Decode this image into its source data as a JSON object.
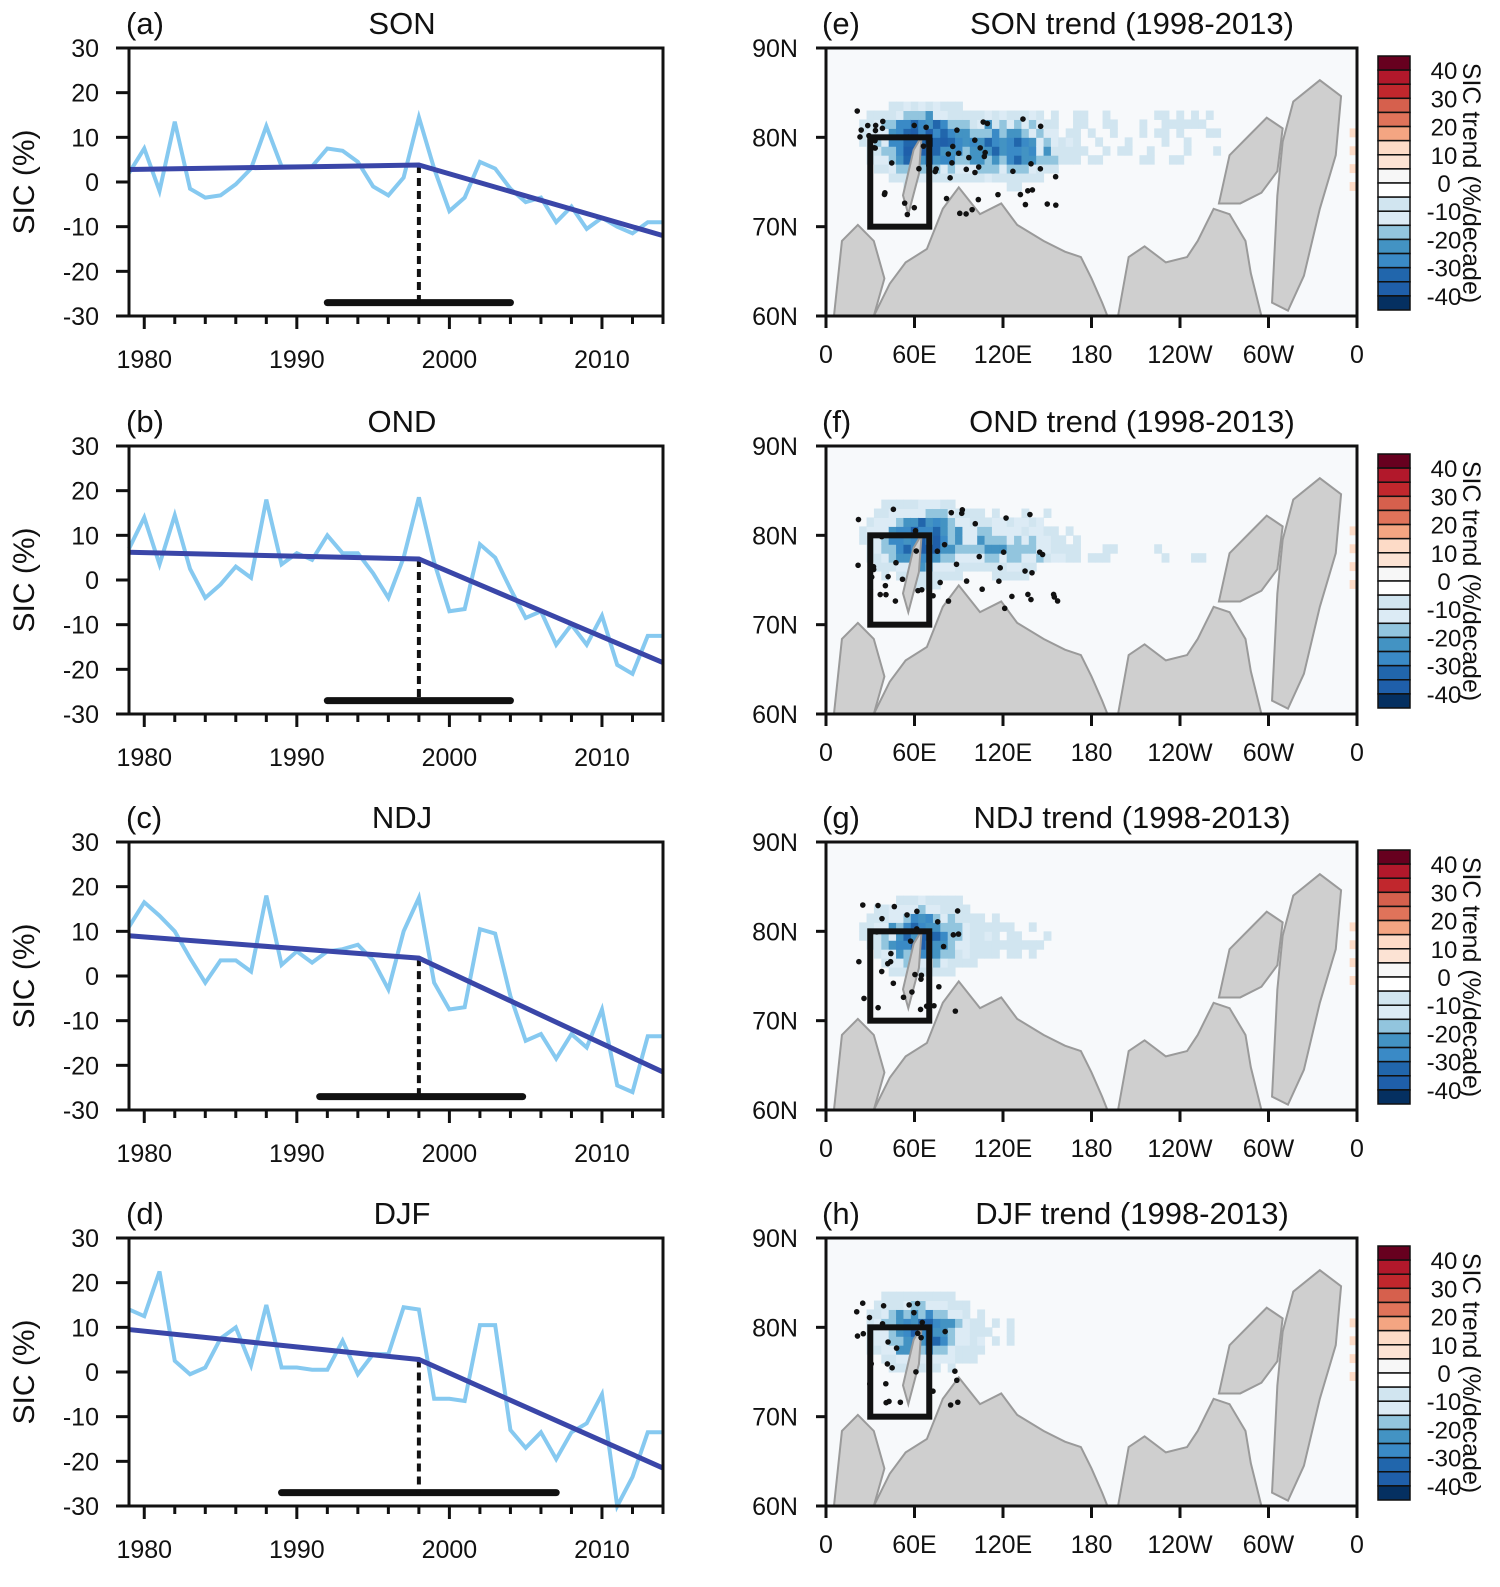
{
  "figure": {
    "ylabel": "SIC (%)",
    "colors": {
      "anomaly_line": "#86C9F0",
      "fit_line": "#3A46A8",
      "breakpoint_line": "#111111",
      "ci_bar": "#111111",
      "land": "#CFCFCF",
      "coast": "#9A9A9A",
      "ocean": "#F7F9FB",
      "box": "#111111"
    }
  },
  "chart_data": [
    {
      "id": "a",
      "type": "line",
      "panel_label": "(a)",
      "title": "SON",
      "xlabel": "",
      "ylabel": "SIC (%)",
      "xlim": [
        1979,
        2014
      ],
      "ylim": [
        -30,
        30
      ],
      "xticks": [
        1980,
        1990,
        2000,
        2010
      ],
      "yticks": [
        30,
        20,
        10,
        0,
        -10,
        -20,
        -30
      ],
      "x": [
        1979,
        1980,
        1981,
        1982,
        1983,
        1984,
        1985,
        1986,
        1987,
        1988,
        1989,
        1990,
        1991,
        1992,
        1993,
        1994,
        1995,
        1996,
        1997,
        1998,
        1999,
        2000,
        2001,
        2002,
        2003,
        2004,
        2005,
        2006,
        2007,
        2008,
        2009,
        2010,
        2011,
        2012,
        2013,
        2014
      ],
      "series": [
        {
          "name": "SIC anomaly",
          "values": [
            2,
            7.5,
            -2,
            13.5,
            -1.5,
            -3.5,
            -3,
            -0.5,
            3,
            12.5,
            3.5,
            3.5,
            3.5,
            7.5,
            7,
            4.5,
            -1,
            -3,
            1,
            14.5,
            3,
            -6.5,
            -3.5,
            4.5,
            3,
            -1.5,
            -4.5,
            -3.5,
            -9,
            -5.5,
            -10.5,
            -8,
            -10,
            -11.5,
            -9,
            -9
          ]
        },
        {
          "name": "piecewise linear fit",
          "x": [
            1979,
            1998,
            2014
          ],
          "values": [
            2.8,
            3.8,
            -12
          ]
        }
      ],
      "breakpoint": {
        "year": 1998,
        "ci": [
          1992,
          2004
        ],
        "ci_y": -27
      }
    },
    {
      "id": "b",
      "type": "line",
      "panel_label": "(b)",
      "title": "OND",
      "xlabel": "",
      "ylabel": "SIC (%)",
      "xlim": [
        1979,
        2014
      ],
      "ylim": [
        -30,
        30
      ],
      "xticks": [
        1980,
        1990,
        2000,
        2010
      ],
      "yticks": [
        30,
        20,
        10,
        0,
        -10,
        -20,
        -30
      ],
      "x": [
        1979,
        1980,
        1981,
        1982,
        1983,
        1984,
        1985,
        1986,
        1987,
        1988,
        1989,
        1990,
        1991,
        1992,
        1993,
        1994,
        1995,
        1996,
        1997,
        1998,
        1999,
        2000,
        2001,
        2002,
        2003,
        2004,
        2005,
        2006,
        2007,
        2008,
        2009,
        2010,
        2011,
        2012,
        2013,
        2014
      ],
      "series": [
        {
          "name": "SIC anomaly",
          "values": [
            7,
            14,
            3.5,
            14.5,
            2.5,
            -4,
            -1,
            3,
            0.5,
            18,
            3.5,
            6,
            4.5,
            10,
            6,
            6,
            1.5,
            -4,
            5,
            18.5,
            4,
            -7,
            -6.5,
            8,
            5,
            -2,
            -8.5,
            -7,
            -14.5,
            -10,
            -14.5,
            -8,
            -19,
            -21,
            -12.5,
            -12.5
          ]
        },
        {
          "name": "piecewise linear fit",
          "x": [
            1979,
            1998,
            2014
          ],
          "values": [
            6.2,
            4.7,
            -18.5
          ]
        }
      ],
      "breakpoint": {
        "year": 1998,
        "ci": [
          1992,
          2004
        ],
        "ci_y": -27
      }
    },
    {
      "id": "c",
      "type": "line",
      "panel_label": "(c)",
      "title": "NDJ",
      "xlabel": "",
      "ylabel": "SIC (%)",
      "xlim": [
        1979,
        2014
      ],
      "ylim": [
        -30,
        30
      ],
      "xticks": [
        1980,
        1990,
        2000,
        2010
      ],
      "yticks": [
        30,
        20,
        10,
        0,
        -10,
        -20,
        -30
      ],
      "x": [
        1979,
        1980,
        1981,
        1982,
        1983,
        1984,
        1985,
        1986,
        1987,
        1988,
        1989,
        1990,
        1991,
        1992,
        1993,
        1994,
        1995,
        1996,
        1997,
        1998,
        1999,
        2000,
        2001,
        2002,
        2003,
        2004,
        2005,
        2006,
        2007,
        2008,
        2009,
        2010,
        2011,
        2012,
        2013,
        2014
      ],
      "series": [
        {
          "name": "SIC anomaly",
          "values": [
            11,
            16.5,
            13.5,
            10,
            4,
            -1.5,
            3.5,
            3.5,
            1,
            18,
            2.5,
            5.5,
            3,
            5.5,
            6,
            7,
            3.5,
            -3,
            10,
            17.5,
            -1.5,
            -7.5,
            -7,
            10.5,
            9.5,
            -4.5,
            -14.5,
            -13,
            -18.5,
            -13,
            -16,
            -7.5,
            -24.5,
            -26,
            -13.5,
            -13.5
          ]
        },
        {
          "name": "piecewise linear fit",
          "x": [
            1979,
            1998,
            2014
          ],
          "values": [
            9,
            4,
            -21.5
          ]
        }
      ],
      "breakpoint": {
        "year": 1998,
        "ci": [
          1991.5,
          2004.8
        ],
        "ci_y": -27
      }
    },
    {
      "id": "d",
      "type": "line",
      "panel_label": "(d)",
      "title": "DJF",
      "xlabel": "",
      "ylabel": "SIC (%)",
      "xlim": [
        1979,
        2014
      ],
      "ylim": [
        -30,
        30
      ],
      "xticks": [
        1980,
        1990,
        2000,
        2010
      ],
      "yticks": [
        30,
        20,
        10,
        0,
        -10,
        -20,
        -30
      ],
      "x": [
        1979,
        1980,
        1981,
        1982,
        1983,
        1984,
        1985,
        1986,
        1987,
        1988,
        1989,
        1990,
        1991,
        1992,
        1993,
        1994,
        1995,
        1996,
        1997,
        1998,
        1999,
        2000,
        2001,
        2002,
        2003,
        2004,
        2005,
        2006,
        2007,
        2008,
        2009,
        2010,
        2011,
        2012,
        2013,
        2014
      ],
      "series": [
        {
          "name": "SIC anomaly",
          "values": [
            14,
            12.5,
            22.5,
            2.5,
            -0.5,
            1,
            7.5,
            10,
            1.5,
            15,
            1,
            1,
            0.5,
            0.5,
            7,
            -0.5,
            4,
            4,
            14.5,
            14,
            -6,
            -6,
            -6.5,
            10.5,
            10.5,
            -13,
            -17,
            -13.5,
            -19.5,
            -13.5,
            -11.5,
            -5,
            -30,
            -23.5,
            -13.5,
            -13.5
          ]
        },
        {
          "name": "piecewise linear fit",
          "x": [
            1979,
            1998,
            2014
          ],
          "values": [
            9.5,
            2.8,
            -21.5
          ]
        }
      ],
      "breakpoint": {
        "year": 1998,
        "ci": [
          1989,
          2007
        ],
        "ci_y": -27
      }
    },
    {
      "id": "e",
      "type": "heatmap",
      "panel_label": "(e)",
      "title": "SON  trend (1998-2013)",
      "season": "SON",
      "xticks": [
        "0",
        "60E",
        "120E",
        "180",
        "120W",
        "60W",
        "0"
      ],
      "yticks": [
        "90N",
        "80N",
        "70N",
        "60N"
      ],
      "lon_range": [
        0,
        360
      ],
      "lat_range": [
        60,
        90
      ],
      "box": {
        "lon": [
          30,
          70
        ],
        "lat": [
          70,
          80
        ]
      },
      "intensity": 1.0
    },
    {
      "id": "f",
      "type": "heatmap",
      "panel_label": "(f)",
      "title": "OND  trend (1998-2013)",
      "season": "OND",
      "xticks": [
        "0",
        "60E",
        "120E",
        "180",
        "120W",
        "60W",
        "0"
      ],
      "yticks": [
        "90N",
        "80N",
        "70N",
        "60N"
      ],
      "lon_range": [
        0,
        360
      ],
      "lat_range": [
        60,
        90
      ],
      "box": {
        "lon": [
          30,
          70
        ],
        "lat": [
          70,
          80
        ]
      },
      "intensity": 0.8
    },
    {
      "id": "g",
      "type": "heatmap",
      "panel_label": "(g)",
      "title": "NDJ  trend (1998-2013)",
      "season": "NDJ",
      "xticks": [
        "0",
        "60E",
        "120E",
        "180",
        "120W",
        "60W",
        "0"
      ],
      "yticks": [
        "90N",
        "80N",
        "70N",
        "60N"
      ],
      "lon_range": [
        0,
        360
      ],
      "lat_range": [
        60,
        90
      ],
      "box": {
        "lon": [
          30,
          70
        ],
        "lat": [
          70,
          80
        ]
      },
      "intensity": 0.55
    },
    {
      "id": "h",
      "type": "heatmap",
      "panel_label": "(h)",
      "title": "DJF  trend (1998-2013)",
      "season": "DJF",
      "xticks": [
        "0",
        "60E",
        "120E",
        "180",
        "120W",
        "60W",
        "0"
      ],
      "yticks": [
        "90N",
        "80N",
        "70N",
        "60N"
      ],
      "lon_range": [
        0,
        360
      ],
      "lat_range": [
        60,
        90
      ],
      "box": {
        "lon": [
          30,
          70
        ],
        "lat": [
          70,
          80
        ]
      },
      "intensity": 0.5
    }
  ],
  "colorbar": {
    "title": "SIC trend (%/decade)",
    "labels": [
      "40",
      "30",
      "20",
      "10",
      "0",
      "-10",
      "-20",
      "-30",
      "-40"
    ],
    "colors": [
      "#67001F",
      "#B2182B",
      "#C1272D",
      "#D6604D",
      "#E0735A",
      "#F4A582",
      "#FDDBC7",
      "#FCE3D4",
      "#F7F7F7",
      "#FFFFFF",
      "#D1E5F0",
      "#DCEBF5",
      "#92C5DE",
      "#4393C3",
      "#3A8AC6",
      "#2166AC",
      "#1F5FAA",
      "#053061"
    ]
  }
}
